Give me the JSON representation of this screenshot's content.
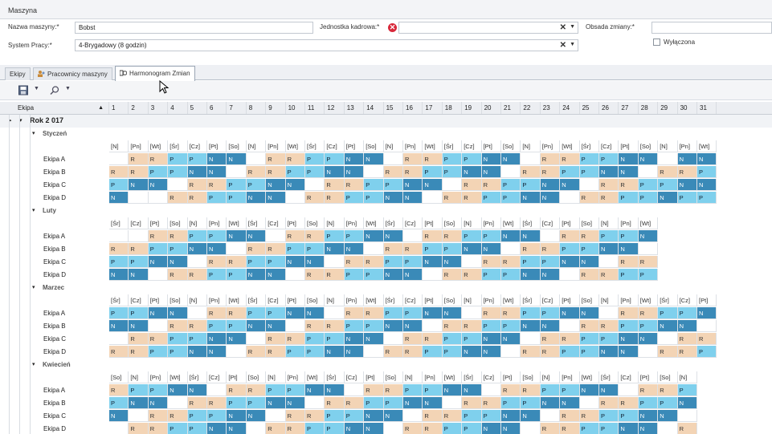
{
  "group": {
    "title": "Maszyna"
  },
  "form": {
    "machine_name_label": "Nazwa maszyny:*",
    "machine_name_value": "Bobst",
    "unit_label": "Jednostka kadrowa:*",
    "unit_value": "",
    "shift_staff_label": "Obsada zmiany:*",
    "shift_staff_value": "",
    "work_system_label": "System Pracy:*",
    "work_system_value": "4-Brygadowy (8 godzin)",
    "disabled_label": "Wyłączona"
  },
  "tabs": [
    {
      "label": "Ekipy"
    },
    {
      "label": "Pracownicy maszyny"
    },
    {
      "label": "Harmonogram Zmian"
    }
  ],
  "grid": {
    "team_col_label": "Ekipa",
    "days": [
      "1",
      "2",
      "3",
      "4",
      "5",
      "6",
      "7",
      "8",
      "9",
      "10",
      "11",
      "12",
      "13",
      "14",
      "15",
      "16",
      "17",
      "18",
      "19",
      "20",
      "21",
      "22",
      "23",
      "24",
      "25",
      "26",
      "27",
      "28",
      "29",
      "30",
      "31"
    ],
    "year_label": "Rok 2 017",
    "months": [
      {
        "name": "Styczeń",
        "weekdays": [
          "[N]",
          "[Pn]",
          "[Wt]",
          "[Śr]",
          "[Cz]",
          "[Pt]",
          "[So]",
          "[N]",
          "[Pn]",
          "[Wt]",
          "[Śr]",
          "[Cz]",
          "[Pt]",
          "[So]",
          "[N]",
          "[Pn]",
          "[Wt]",
          "[Śr]",
          "[Cz]",
          "[Pt]",
          "[So]",
          "[N]",
          "[Pn]",
          "[Wt]",
          "[Śr]",
          "[Cz]",
          "[Pt]",
          "[So]",
          "[N]",
          "[Pn]",
          "[Wt]"
        ],
        "rows": [
          {
            "team": "Ekipa A",
            "cells": [
              "",
              "R",
              "R",
              "P",
              "P",
              "N",
              "N",
              "",
              "R",
              "R",
              "P",
              "P",
              "N",
              "N",
              "",
              "R",
              "R",
              "P",
              "P",
              "N",
              "N",
              "",
              "R",
              "R",
              "P",
              "P",
              "N",
              "N",
              "",
              "N",
              "N"
            ]
          },
          {
            "team": "Ekipa B",
            "cells": [
              "R",
              "R",
              "P",
              "P",
              "N",
              "N",
              "",
              "R",
              "R",
              "P",
              "P",
              "N",
              "N",
              "",
              "R",
              "R",
              "P",
              "P",
              "N",
              "N",
              "",
              "R",
              "R",
              "P",
              "P",
              "N",
              "N",
              "",
              "R",
              "R",
              "P"
            ]
          },
          {
            "team": "Ekipa C",
            "cells": [
              "P",
              "N",
              "N",
              "",
              "R",
              "R",
              "P",
              "P",
              "N",
              "N",
              "",
              "R",
              "R",
              "P",
              "P",
              "N",
              "N",
              "",
              "R",
              "R",
              "P",
              "P",
              "N",
              "N",
              "",
              "R",
              "R",
              "P",
              "P",
              "N",
              "N"
            ]
          },
          {
            "team": "Ekipa D",
            "cells": [
              "N",
              "",
              "",
              "R",
              "R",
              "P",
              "P",
              "N",
              "N",
              "",
              "R",
              "R",
              "P",
              "P",
              "N",
              "N",
              "",
              "R",
              "R",
              "P",
              "P",
              "N",
              "N",
              "",
              "R",
              "R",
              "P",
              "P",
              "N",
              "P",
              "P"
            ]
          }
        ]
      },
      {
        "name": "Luty",
        "weekdays": [
          "[Śr]",
          "[Cz]",
          "[Pt]",
          "[So]",
          "[N]",
          "[Pn]",
          "[Wt]",
          "[Śr]",
          "[Cz]",
          "[Pt]",
          "[So]",
          "[N]",
          "[Pn]",
          "[Wt]",
          "[Śr]",
          "[Cz]",
          "[Pt]",
          "[So]",
          "[N]",
          "[Pn]",
          "[Wt]",
          "[Śr]",
          "[Cz]",
          "[Pt]",
          "[So]",
          "[N]",
          "[Pn]",
          "[Wt]"
        ],
        "rows": [
          {
            "team": "Ekipa A",
            "cells": [
              "",
              "",
              "R",
              "R",
              "P",
              "P",
              "N",
              "N",
              "",
              "R",
              "R",
              "P",
              "P",
              "N",
              "N",
              "",
              "R",
              "R",
              "P",
              "P",
              "N",
              "N",
              "",
              "R",
              "R",
              "P",
              "P",
              "N"
            ]
          },
          {
            "team": "Ekipa B",
            "cells": [
              "R",
              "R",
              "P",
              "P",
              "N",
              "N",
              "",
              "R",
              "R",
              "P",
              "P",
              "N",
              "N",
              "",
              "R",
              "R",
              "P",
              "P",
              "N",
              "N",
              "",
              "R",
              "R",
              "P",
              "P",
              "N",
              "N",
              ""
            ]
          },
          {
            "team": "Ekipa C",
            "cells": [
              "P",
              "P",
              "N",
              "N",
              "",
              "R",
              "R",
              "P",
              "P",
              "N",
              "N",
              "",
              "R",
              "R",
              "P",
              "P",
              "N",
              "N",
              "",
              "R",
              "R",
              "P",
              "P",
              "N",
              "N",
              "",
              "R",
              "R"
            ]
          },
          {
            "team": "Ekipa D",
            "cells": [
              "N",
              "N",
              "",
              "R",
              "R",
              "P",
              "P",
              "N",
              "N",
              "",
              "R",
              "R",
              "P",
              "P",
              "N",
              "N",
              "",
              "R",
              "R",
              "P",
              "P",
              "N",
              "N",
              "",
              "R",
              "R",
              "P",
              "P"
            ]
          }
        ]
      },
      {
        "name": "Marzec",
        "weekdays": [
          "[Śr]",
          "[Cz]",
          "[Pt]",
          "[So]",
          "[N]",
          "[Pn]",
          "[Wt]",
          "[Śr]",
          "[Cz]",
          "[Pt]",
          "[So]",
          "[N]",
          "[Pn]",
          "[Wt]",
          "[Śr]",
          "[Cz]",
          "[Pt]",
          "[So]",
          "[N]",
          "[Pn]",
          "[Wt]",
          "[Śr]",
          "[Cz]",
          "[Pt]",
          "[So]",
          "[N]",
          "[Pn]",
          "[Wt]",
          "[Śr]",
          "[Cz]",
          "[Pt]"
        ],
        "rows": [
          {
            "team": "Ekipa A",
            "cells": [
              "P",
              "P",
              "N",
              "N",
              "",
              "R",
              "R",
              "P",
              "P",
              "N",
              "N",
              "",
              "R",
              "R",
              "P",
              "P",
              "N",
              "N",
              "",
              "R",
              "R",
              "P",
              "P",
              "N",
              "N",
              "",
              "R",
              "R",
              "P",
              "P",
              "N"
            ]
          },
          {
            "team": "Ekipa B",
            "cells": [
              "N",
              "N",
              "",
              "R",
              "R",
              "P",
              "P",
              "N",
              "N",
              "",
              "R",
              "R",
              "P",
              "P",
              "N",
              "N",
              "",
              "R",
              "R",
              "P",
              "P",
              "N",
              "N",
              "",
              "R",
              "R",
              "P",
              "P",
              "N",
              "N",
              ""
            ]
          },
          {
            "team": "Ekipa C",
            "cells": [
              "",
              "R",
              "R",
              "P",
              "P",
              "N",
              "N",
              "",
              "R",
              "R",
              "P",
              "P",
              "N",
              "N",
              "",
              "R",
              "R",
              "P",
              "P",
              "N",
              "N",
              "",
              "R",
              "R",
              "P",
              "P",
              "N",
              "N",
              "",
              "R",
              "R"
            ]
          },
          {
            "team": "Ekipa D",
            "cells": [
              "R",
              "R",
              "P",
              "P",
              "N",
              "N",
              "",
              "R",
              "R",
              "P",
              "P",
              "N",
              "N",
              "",
              "R",
              "R",
              "P",
              "P",
              "N",
              "N",
              "",
              "R",
              "R",
              "P",
              "P",
              "N",
              "N",
              "",
              "R",
              "R",
              "P"
            ]
          }
        ]
      },
      {
        "name": "Kwiecień",
        "weekdays": [
          "[So]",
          "[N]",
          "[Pn]",
          "[Wt]",
          "[Śr]",
          "[Cz]",
          "[Pt]",
          "[So]",
          "[N]",
          "[Pn]",
          "[Wt]",
          "[Śr]",
          "[Cz]",
          "[Pt]",
          "[So]",
          "[N]",
          "[Pn]",
          "[Wt]",
          "[Śr]",
          "[Cz]",
          "[Pt]",
          "[So]",
          "[N]",
          "[Pn]",
          "[Wt]",
          "[Śr]",
          "[Cz]",
          "[Pt]",
          "[So]",
          "[N]"
        ],
        "rows": [
          {
            "team": "Ekipa A",
            "cells": [
              "R",
              "P",
              "P",
              "N",
              "N",
              "",
              "R",
              "R",
              "P",
              "P",
              "N",
              "N",
              "",
              "R",
              "R",
              "P",
              "P",
              "N",
              "N",
              "",
              "R",
              "R",
              "P",
              "P",
              "N",
              "N",
              "",
              "R",
              "R",
              "P"
            ]
          },
          {
            "team": "Ekipa B",
            "cells": [
              "P",
              "N",
              "N",
              "",
              "R",
              "R",
              "P",
              "P",
              "N",
              "N",
              "",
              "R",
              "R",
              "P",
              "P",
              "N",
              "N",
              "",
              "R",
              "R",
              "P",
              "P",
              "N",
              "N",
              "",
              "R",
              "R",
              "P",
              "P",
              "N"
            ]
          },
          {
            "team": "Ekipa C",
            "cells": [
              "N",
              "",
              "R",
              "R",
              "P",
              "P",
              "N",
              "N",
              "",
              "R",
              "R",
              "P",
              "P",
              "N",
              "N",
              "",
              "R",
              "R",
              "P",
              "P",
              "N",
              "N",
              "",
              "R",
              "R",
              "P",
              "P",
              "N",
              "N",
              ""
            ]
          },
          {
            "team": "Ekipa D",
            "cells": [
              "",
              "R",
              "R",
              "P",
              "P",
              "N",
              "N",
              "",
              "R",
              "R",
              "P",
              "P",
              "N",
              "N",
              "",
              "R",
              "R",
              "P",
              "P",
              "N",
              "N",
              "",
              "R",
              "R",
              "P",
              "P",
              "N",
              "N",
              "",
              "R"
            ]
          }
        ]
      }
    ]
  },
  "colors": {
    "R": "#f3d4b5",
    "P": "#7fd0ed",
    "N": "#3a8ab8"
  },
  "icons": {
    "save": "save-icon",
    "dropdown": "chevron-down-icon",
    "search": "search-icon",
    "sort": "sort-up-icon",
    "error": "error-icon"
  }
}
